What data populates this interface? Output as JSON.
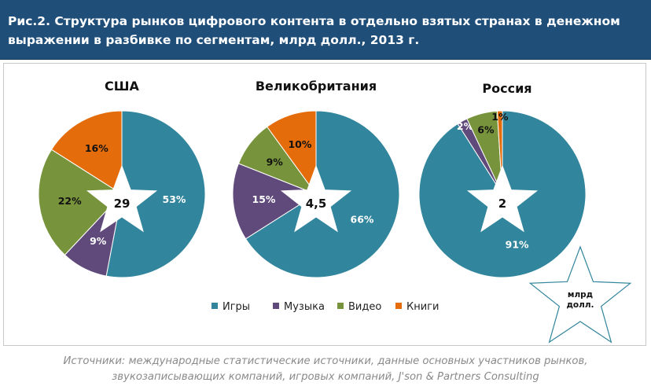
{
  "header": {
    "title_line1": "Рис.2. Структура рынков цифрового контента в отдельно взятых странах в денежном",
    "title_line2": "выражении в разбивке по сегментам, млрд долл., 2013 г."
  },
  "colors": {
    "games": "#31859c",
    "music": "#604a7b",
    "video": "#77933c",
    "books": "#e46c0a",
    "header_bg": "#1f4e79",
    "star_outline": "#31859c"
  },
  "chart_data": {
    "type": "pie",
    "categories": [
      "Игры",
      "Музыка",
      "Видео",
      "Книги"
    ],
    "value_unit": "млрд долл.",
    "pies": [
      {
        "title": "США",
        "total": "29",
        "values": [
          53,
          9,
          22,
          16
        ],
        "labels": [
          "53%",
          "9%",
          "22%",
          "16%"
        ]
      },
      {
        "title": "Великобритания",
        "total": "4,5",
        "values": [
          66,
          15,
          9,
          10
        ],
        "labels": [
          "66%",
          "15%",
          "9%",
          "10%"
        ]
      },
      {
        "title": "Россия",
        "total": "2",
        "values": [
          91,
          2,
          6,
          1
        ],
        "labels": [
          "91%",
          "2%",
          "6%",
          "1%"
        ]
      }
    ],
    "legend": {
      "placement": "bottom",
      "entries": [
        "Игры",
        "Музыка",
        "Видео",
        "Книги"
      ]
    },
    "unit_star": {
      "line1": "млрд",
      "line2": "долл."
    }
  },
  "source": {
    "line1": "Источники: международные статистические источники, данные основных участников рынков,",
    "line2": "звукозаписывающих компаний, игровых компаний, J'son & Partners Consulting"
  }
}
